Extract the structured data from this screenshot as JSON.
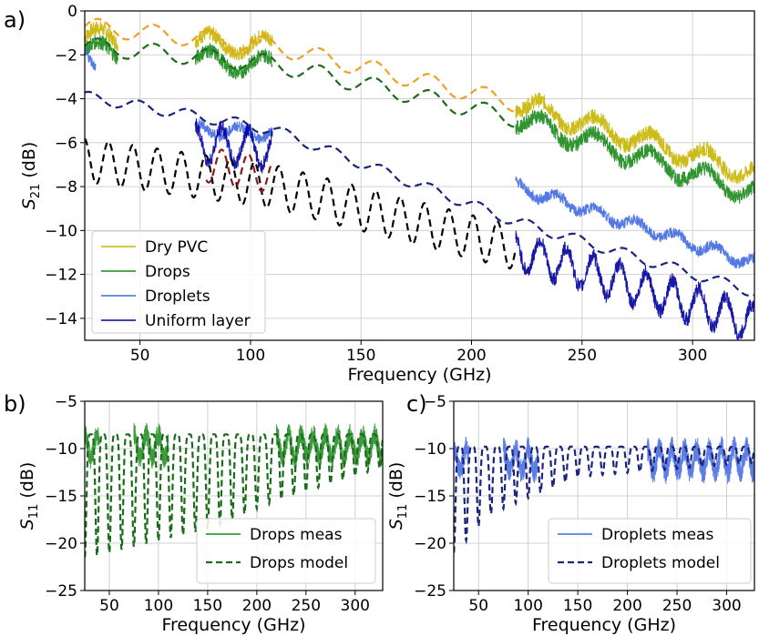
{
  "chart_data": [
    {
      "panel": "a)",
      "type": "line",
      "xlabel": "Frequency (GHz)",
      "ylabel_main": "S",
      "ylabel_sub": "21",
      "ylabel_unit": " (dB)",
      "xlim": [
        25,
        328
      ],
      "ylim": [
        -15,
        0
      ],
      "xticks": [
        50,
        100,
        150,
        200,
        250,
        300
      ],
      "yticks": [
        0,
        -2,
        -4,
        -6,
        -8,
        -10,
        -12,
        -14
      ],
      "grid": true,
      "legend_position": "bottom-left",
      "legend": [
        {
          "label": "Dry PVC",
          "color": "#c8b400"
        },
        {
          "label": "Drops",
          "color": "#1a8a1a"
        },
        {
          "label": "Droplets",
          "color": "#4169e1"
        },
        {
          "label": "Uniform layer",
          "color": "#0000a0"
        }
      ],
      "series": [
        {
          "name": "Dry PVC",
          "kind": "measured",
          "color": "#c8b400",
          "segments": [
            [
              25,
              40
            ],
            [
              75,
              110
            ],
            [
              220,
              328
            ]
          ],
          "base": [
            [
              25,
              -1.2
            ],
            [
              110,
              -1.6
            ],
            [
              220,
              -4.2
            ],
            [
              328,
              -7.4
            ]
          ],
          "amp": 0.45,
          "period": 25,
          "noise": 0.35
        },
        {
          "kind": "model",
          "color": "#f0a020",
          "range": [
            25,
            220
          ],
          "base": [
            [
              25,
              -0.7
            ],
            [
              110,
              -1.6
            ],
            [
              220,
              -4.2
            ]
          ],
          "amp": 0.4,
          "period": 25
        },
        {
          "name": "Drops",
          "kind": "measured",
          "color": "#1a8a1a",
          "segments": [
            [
              25,
              40
            ],
            [
              75,
              110
            ],
            [
              220,
              328
            ]
          ],
          "base": [
            [
              25,
              -1.8
            ],
            [
              110,
              -2.5
            ],
            [
              220,
              -4.9
            ],
            [
              328,
              -8.3
            ]
          ],
          "amp": 0.45,
          "period": 25,
          "noise": 0.35
        },
        {
          "kind": "model",
          "color": "#1a6b1a",
          "range": [
            25,
            220
          ],
          "base": [
            [
              25,
              -1.6
            ],
            [
              110,
              -2.4
            ],
            [
              220,
              -4.9
            ]
          ],
          "amp": 0.4,
          "period": 25
        },
        {
          "name": "Droplets",
          "kind": "measured",
          "color": "#4169e1",
          "segments": [
            [
              25,
              30
            ],
            [
              75,
              110
            ],
            [
              220,
              328
            ]
          ],
          "base": [
            [
              25,
              -2.0
            ],
            [
              75,
              -5.4
            ],
            [
              110,
              -5.6
            ],
            [
              220,
              -8.0
            ],
            [
              328,
              -11.5
            ]
          ],
          "amp": 0.25,
          "period": 18,
          "noise": 0.25
        },
        {
          "kind": "model",
          "color": "#1a237e",
          "range": [
            25,
            328
          ],
          "base": [
            [
              25,
              -3.9
            ],
            [
              110,
              -5.4
            ],
            [
              220,
              -9.6
            ],
            [
              328,
              -12.8
            ]
          ],
          "amp": 0.25,
          "period": 22
        },
        {
          "name": "Uniform layer",
          "kind": "measured",
          "color": "#0000a0",
          "segments": [
            [
              75,
              110
            ],
            [
              220,
              328
            ]
          ],
          "base": [
            [
              75,
              -6.0
            ],
            [
              110,
              -6.3
            ],
            [
              220,
              -10.9
            ],
            [
              328,
              -14.2
            ]
          ],
          "amp": 0.8,
          "period": 12,
          "noise": 0.35
        },
        {
          "kind": "model",
          "color": "#000000",
          "range": [
            25,
            220
          ],
          "base": [
            [
              25,
              -6.8
            ],
            [
              110,
              -8.0
            ],
            [
              220,
              -10.8
            ]
          ],
          "amp": 1.0,
          "period": 11
        },
        {
          "kind": "model",
          "color": "#8b1a1a",
          "range": [
            80,
            110
          ],
          "base": [
            [
              80,
              -7.0
            ],
            [
              110,
              -7.5
            ]
          ],
          "amp": 0.8,
          "period": 12
        }
      ]
    },
    {
      "panel": "b)",
      "type": "line",
      "xlabel": "Frequency (GHz)",
      "ylabel_main": "S",
      "ylabel_sub": "11",
      "ylabel_unit": " (dB)",
      "xlim": [
        25,
        328
      ],
      "ylim": [
        -25,
        -5
      ],
      "xticks": [
        50,
        100,
        150,
        200,
        250,
        300
      ],
      "yticks": [
        -5,
        -10,
        -15,
        -20,
        -25
      ],
      "grid": true,
      "legend_position": "bottom-right",
      "legend": [
        {
          "label": "Drops meas",
          "color": "#1a8a1a",
          "style": "solid"
        },
        {
          "label": "Drops model",
          "color": "#1a6b1a",
          "style": "dashed"
        }
      ],
      "series": [
        {
          "name": "Drops meas",
          "kind": "s11meas",
          "color": "#1a8a1a",
          "segments": [
            [
              25,
              40
            ],
            [
              75,
              110
            ],
            [
              220,
              328
            ]
          ],
          "period": 12.5,
          "top": -8.5,
          "noise": 1.2
        },
        {
          "name": "Drops model",
          "kind": "s11model",
          "color": "#1a6b1a",
          "range": [
            25,
            328
          ],
          "period": 12.5,
          "top": -8.5,
          "deep": [
            [
              30,
              -21.5
            ],
            [
              150,
              -18.5
            ],
            [
              220,
              -15.5
            ],
            [
              328,
              -12.0
            ]
          ]
        }
      ]
    },
    {
      "panel": "c)",
      "type": "line",
      "xlabel": "Frequency (GHz)",
      "ylabel_main": "S",
      "ylabel_sub": "11",
      "ylabel_unit": " (dB)",
      "xlim": [
        25,
        328
      ],
      "ylim": [
        -25,
        -5
      ],
      "xticks": [
        50,
        100,
        150,
        200,
        250,
        300
      ],
      "yticks": [
        -5,
        -10,
        -15,
        -20,
        -25
      ],
      "grid": true,
      "legend_position": "bottom-right",
      "legend": [
        {
          "label": "Droplets meas",
          "color": "#4169e1",
          "style": "solid"
        },
        {
          "label": "Droplets model",
          "color": "#1a237e",
          "style": "dashed"
        }
      ],
      "series": [
        {
          "name": "Droplets meas",
          "kind": "s11meas",
          "color": "#4169e1",
          "segments": [
            [
              25,
              40
            ],
            [
              75,
              110
            ],
            [
              220,
              328
            ]
          ],
          "period": 12.5,
          "top": -10.0,
          "noise": 1.3
        },
        {
          "name": "Droplets model",
          "kind": "s11model",
          "color": "#1a237e",
          "range": [
            25,
            328
          ],
          "period": 12.5,
          "top": -9.8,
          "deep": [
            [
              27,
              -21
            ],
            [
              60,
              -17
            ],
            [
              150,
              -13
            ],
            [
              328,
              -11.5
            ]
          ]
        }
      ]
    }
  ]
}
